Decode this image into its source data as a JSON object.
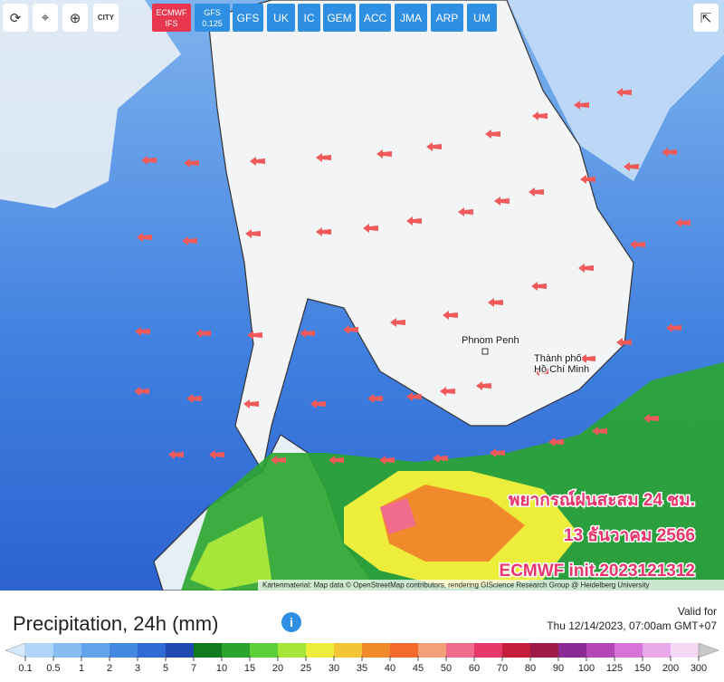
{
  "toolbar": {
    "city": "CITY",
    "models": [
      {
        "name": "ECMWF",
        "sub": "IFS",
        "active": true
      },
      {
        "name": "GFS",
        "sub": "0.125"
      },
      {
        "name": "GFS"
      },
      {
        "name": "UK"
      },
      {
        "name": "IC"
      },
      {
        "name": "GEM"
      },
      {
        "name": "ACC"
      },
      {
        "name": "JMA"
      },
      {
        "name": "ARP"
      },
      {
        "name": "UM"
      }
    ]
  },
  "map": {
    "places": [
      {
        "label": "Phnom Penh"
      },
      {
        "lines": [
          "Thành phố",
          "Hồ Chí Minh"
        ]
      }
    ],
    "overlay": [
      "พยากรณ์ฝนสะสม 24 ชม.",
      "13 ธันวาคม 2566",
      "ECMWF init.2023121312"
    ],
    "attribution": "Kartenmaterial: Map data © OpenStreetMap contributors, rendering GIScience Research Group @ Heidelberg University"
  },
  "footer": {
    "title": "Precipitation, 24h (mm)",
    "valid_label": "Valid for",
    "valid_time": "Thu 12/14/2023, 07:00am GMT+07"
  },
  "legend": {
    "stops": [
      0.1,
      0.5,
      1,
      2,
      3,
      5,
      7,
      10,
      15,
      20,
      25,
      30,
      35,
      40,
      45,
      50,
      60,
      70,
      80,
      90,
      100,
      125,
      150,
      200,
      300
    ],
    "colors": [
      "#d4e9fb",
      "#b0d6f7",
      "#88bdf2",
      "#64a3ec",
      "#4588e2",
      "#2f6ad6",
      "#1f49b0",
      "#127a1e",
      "#2aa42c",
      "#5ccf3a",
      "#a6e63a",
      "#eded3c",
      "#f2c536",
      "#f08a2a",
      "#f26a2c",
      "#f3a07a",
      "#f06b8c",
      "#e6386a",
      "#c41e3c",
      "#9e1a48",
      "#8c2a96",
      "#b446b8",
      "#d674d8",
      "#e9a8ea",
      "#f4d8f4",
      "#c8c8c8"
    ]
  }
}
